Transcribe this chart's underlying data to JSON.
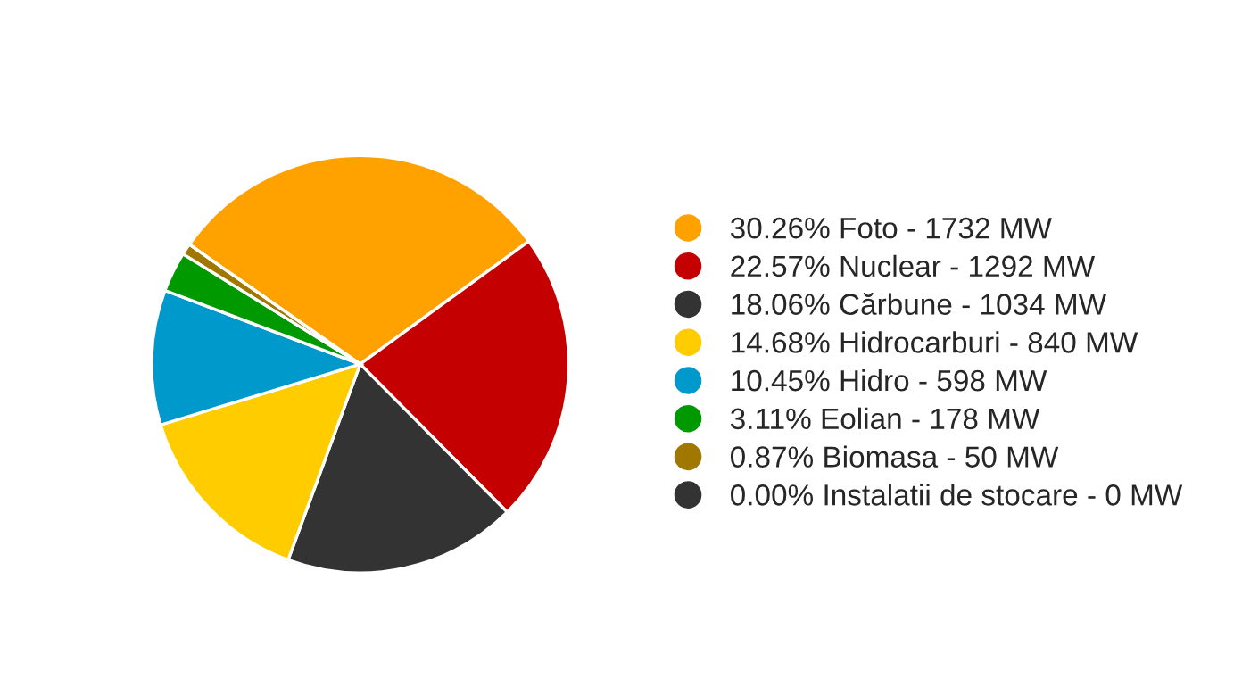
{
  "chart_data": {
    "type": "pie",
    "categories": [
      "30.26% Foto - 1732 MW",
      "22.57% Nuclear - 1292 MW",
      "18.06% Cărbune - 1034 MW",
      "14.68% Hidrocarburi - 840 MW",
      "10.45% Hidro - 598 MW",
      "3.11% Eolian - 178 MW",
      "0.87% Biomasa - 50 MW",
      "0.00% Instalatii de stocare - 0 MW"
    ],
    "values": [
      30.26,
      22.57,
      18.06,
      14.68,
      10.45,
      3.11,
      0.87,
      0
    ],
    "colors": [
      "#ffa200",
      "#c40000",
      "#333333",
      "#ffcc00",
      "#0099cc",
      "#009900",
      "#a07800",
      "#333333"
    ],
    "legend": "right"
  }
}
